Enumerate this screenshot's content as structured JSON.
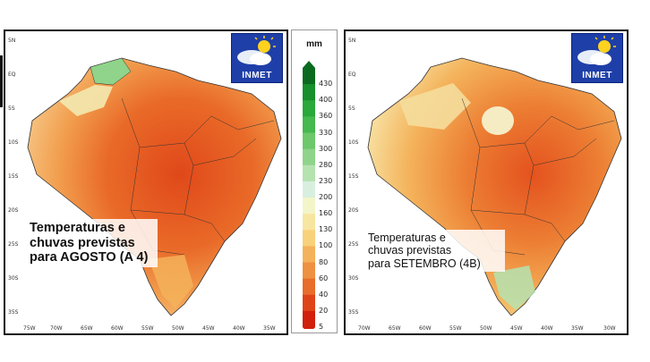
{
  "left_map": {
    "caption_lines": [
      "Temperaturas e",
      "chuvas previstas",
      "para AGOSTO (A 4)"
    ],
    "logo_text": "INMET"
  },
  "right_map": {
    "caption_lines": [
      "Temperaturas e",
      "chuvas previstas",
      "para SETEMBRO (4B)"
    ],
    "logo_text": "INMET"
  },
  "axes": {
    "x_labels": [
      "75W",
      "70W",
      "65W",
      "60W",
      "55W",
      "50W",
      "45W",
      "40W",
      "35W",
      "30W"
    ],
    "y_labels": [
      "5N",
      "EQ",
      "5S",
      "10S",
      "15S",
      "20S",
      "25S",
      "30S",
      "35S"
    ]
  },
  "legend": {
    "unit": "mm",
    "ticks": [
      "430",
      "400",
      "360",
      "330",
      "300",
      "280",
      "230",
      "200",
      "160",
      "130",
      "100",
      "80",
      "60",
      "40",
      "20",
      "5"
    ],
    "colors": [
      "#0a6b1e",
      "#178f2a",
      "#2aa83a",
      "#45b84e",
      "#6cc86a",
      "#8fd48a",
      "#b5e3b0",
      "#d8efe0",
      "#f3f5c8",
      "#f7e6a0",
      "#f8d27a",
      "#f4b25a",
      "#ee9140",
      "#e86d2a",
      "#df4418",
      "#d1200c"
    ]
  }
}
